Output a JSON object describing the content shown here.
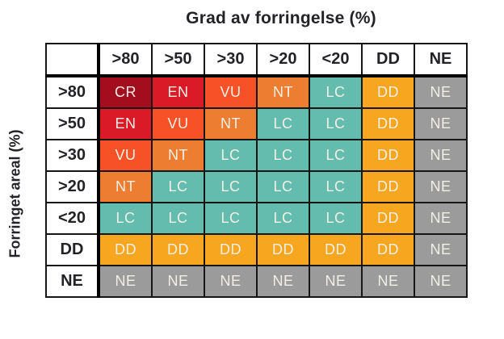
{
  "figure": {
    "x_axis_title": "Grad av forringelse (%)",
    "y_axis_title": "Forringet areal (%)"
  },
  "colors": {
    "background": "#ffffff",
    "header_text": "#232327",
    "cell_text": "#f2efe7",
    "grid_line": "#161616",
    "thick_border": "#000000",
    "outer_border": "#2e2e2e"
  },
  "chart_data": {
    "type": "heatmap",
    "title": "Grad av forringelse (%)",
    "xlabel": "Grad av forringelse (%)",
    "ylabel": "Forringet areal (%)",
    "columns": [
      ">80",
      ">50",
      ">30",
      ">20",
      "<20",
      "DD",
      "NE"
    ],
    "rows": [
      ">80",
      ">50",
      ">30",
      ">20",
      "<20",
      "DD",
      "NE"
    ],
    "values": [
      [
        "CR",
        "EN",
        "VU",
        "NT",
        "LC",
        "DD",
        "NE"
      ],
      [
        "EN",
        "VU",
        "NT",
        "LC",
        "LC",
        "DD",
        "NE"
      ],
      [
        "VU",
        "NT",
        "LC",
        "LC",
        "LC",
        "DD",
        "NE"
      ],
      [
        "NT",
        "LC",
        "LC",
        "LC",
        "LC",
        "DD",
        "NE"
      ],
      [
        "LC",
        "LC",
        "LC",
        "LC",
        "LC",
        "DD",
        "NE"
      ],
      [
        "DD",
        "DD",
        "DD",
        "DD",
        "DD",
        "DD",
        "NE"
      ],
      [
        "NE",
        "NE",
        "NE",
        "NE",
        "NE",
        "NE",
        "NE"
      ]
    ],
    "category_colors": {
      "CR": "#a30d1e",
      "EN": "#da1a26",
      "VU": "#f65127",
      "NT": "#ed7d30",
      "LC": "#63bcae",
      "DD": "#f6a61f",
      "NE": "#9b9b9b"
    },
    "legend_position": "none",
    "grid": true
  }
}
